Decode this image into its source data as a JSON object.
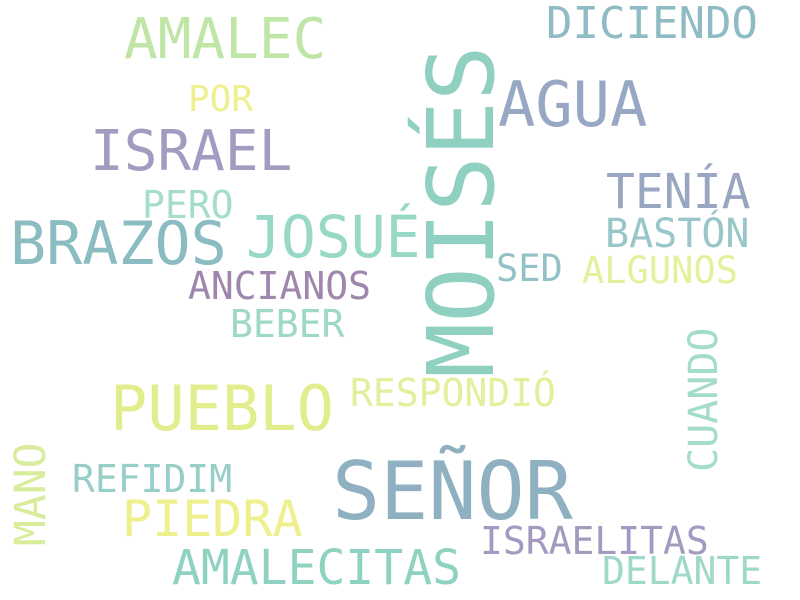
{
  "words": [
    {
      "text": "MOISÉS",
      "color": "#8fd0c0"
    },
    {
      "text": "SEÑOR",
      "color": "#8fb0c0"
    },
    {
      "text": "PUEBLO",
      "color": "#e2ee8e"
    },
    {
      "text": "BRAZOS",
      "color": "#8bbcc2"
    },
    {
      "text": "AGUA",
      "color": "#98a8c4"
    },
    {
      "text": "ISRAEL",
      "color": "#a29cc0"
    },
    {
      "text": "AMALEC",
      "color": "#bfe6a6"
    },
    {
      "text": "JOSUÉ",
      "color": "#98d8c6"
    },
    {
      "text": "DICIENDO",
      "color": "#8fbcc4"
    },
    {
      "text": "TENÍA",
      "color": "#98a6c2"
    },
    {
      "text": "AMALECITAS",
      "color": "#8fd2c2"
    },
    {
      "text": "PIEDRA",
      "color": "#eef08e"
    },
    {
      "text": "BASTÓN",
      "color": "#99c6c8"
    },
    {
      "text": "RESPONDIÓ",
      "color": "#e4ee9c"
    },
    {
      "text": "ANCIANOS",
      "color": "#9f86ac"
    },
    {
      "text": "ALGUNOS",
      "color": "#e6f09c"
    },
    {
      "text": "ISRAELITAS",
      "color": "#a49ac0"
    },
    {
      "text": "REFIDIM",
      "color": "#98cec8"
    },
    {
      "text": "DELANTE",
      "color": "#9ed8c8"
    },
    {
      "text": "BEBER",
      "color": "#9ed8c6"
    },
    {
      "text": "PERO",
      "color": "#a6dcca"
    },
    {
      "text": "POR",
      "color": "#eef08e"
    },
    {
      "text": "SED",
      "color": "#92c2c8"
    },
    {
      "text": "MANO",
      "color": "#d8ec9c"
    },
    {
      "text": "CUANDO",
      "color": "#a4dccc"
    }
  ]
}
